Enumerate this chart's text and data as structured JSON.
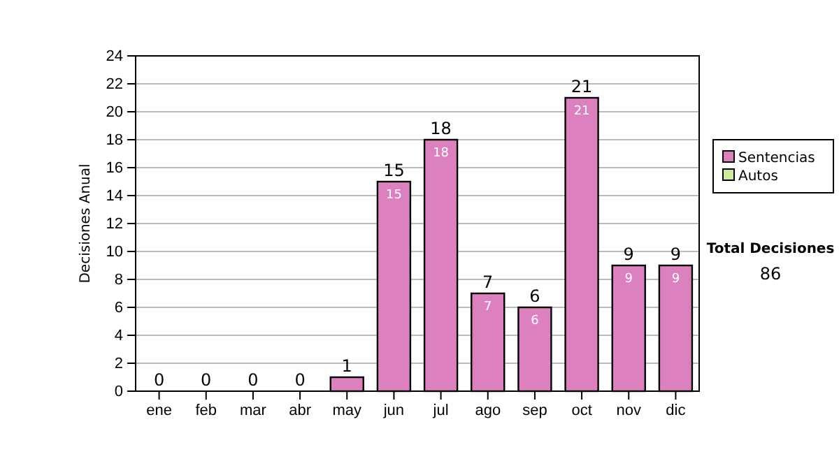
{
  "chart_data": {
    "type": "bar",
    "stacked": true,
    "ylabel": "Decisiones Anual",
    "categories": [
      "ene",
      "feb",
      "mar",
      "abr",
      "may",
      "jun",
      "jul",
      "ago",
      "sep",
      "oct",
      "nov",
      "dic"
    ],
    "series": [
      {
        "name": "Sentencias",
        "color": "#dd80c0",
        "values": [
          0,
          0,
          0,
          0,
          1,
          15,
          18,
          7,
          6,
          21,
          9,
          9
        ],
        "value_labels": [
          null,
          null,
          null,
          null,
          null,
          "15",
          "18",
          "7",
          "6",
          "21",
          "9",
          "9"
        ]
      },
      {
        "name": "Autos",
        "color": "#ccee99",
        "values": [
          0,
          0,
          0,
          0,
          0,
          0,
          0,
          0,
          0,
          0,
          0,
          0
        ]
      }
    ],
    "totals": [
      "0",
      "0",
      "0",
      "0",
      "1",
      "15",
      "18",
      "7",
      "6",
      "21",
      "9",
      "9"
    ],
    "ylim": [
      0,
      24
    ],
    "yticks": [
      0,
      2,
      4,
      6,
      8,
      10,
      12,
      14,
      16,
      18,
      20,
      22,
      24
    ],
    "grid": "y",
    "legend": "right",
    "annotations": [
      "Total Decisiones",
      "86"
    ]
  }
}
